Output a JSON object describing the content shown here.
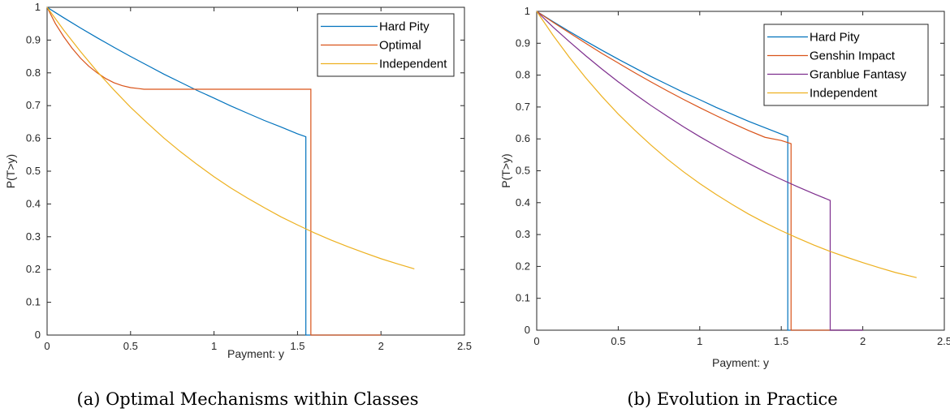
{
  "chart_data": [
    {
      "type": "line",
      "caption": "(a) Optimal Mechanisms within Classes",
      "xlabel": "Payment: y",
      "ylabel": "P(T>y)",
      "xlim": [
        0,
        2.5
      ],
      "ylim": [
        0,
        1
      ],
      "xticks": [
        0,
        0.5,
        1,
        1.5,
        2,
        2.5
      ],
      "yticks": [
        0,
        0.1,
        0.2,
        0.3,
        0.4,
        0.5,
        0.6,
        0.7,
        0.8,
        0.9,
        1
      ],
      "xtick_labels": [
        "0",
        "0.5",
        "1",
        "1.5",
        "2",
        "2.5"
      ],
      "ytick_labels": [
        "0",
        "0.1",
        "0.2",
        "0.3",
        "0.4",
        "0.5",
        "0.6",
        "0.7",
        "0.8",
        "0.9",
        "1"
      ],
      "grid": false,
      "legend_position": "top-right",
      "series": [
        {
          "name": "Hard Pity",
          "color": "#0072BD",
          "x": [
            0,
            0.1,
            0.2,
            0.3,
            0.4,
            0.5,
            0.6,
            0.7,
            0.8,
            0.9,
            1.0,
            1.1,
            1.2,
            1.3,
            1.4,
            1.5,
            1.55,
            1.55,
            2.0
          ],
          "y": [
            1.0,
            0.968,
            0.937,
            0.907,
            0.878,
            0.85,
            0.823,
            0.796,
            0.771,
            0.746,
            0.723,
            0.699,
            0.677,
            0.655,
            0.635,
            0.614,
            0.605,
            0.0,
            0.0
          ]
        },
        {
          "name": "Optimal",
          "color": "#D95319",
          "x": [
            0,
            0.05,
            0.1,
            0.15,
            0.2,
            0.25,
            0.3,
            0.35,
            0.4,
            0.45,
            0.5,
            0.55,
            0.58,
            1.0,
            1.5,
            1.58,
            1.58,
            2.0
          ],
          "y": [
            1.0,
            0.95,
            0.91,
            0.875,
            0.845,
            0.82,
            0.8,
            0.783,
            0.77,
            0.761,
            0.755,
            0.752,
            0.75,
            0.75,
            0.75,
            0.75,
            0.0,
            0.0
          ]
        },
        {
          "name": "Independent",
          "color": "#EDB120",
          "x": [
            0,
            0.1,
            0.2,
            0.3,
            0.4,
            0.5,
            0.6,
            0.7,
            0.8,
            0.9,
            1.0,
            1.1,
            1.2,
            1.3,
            1.4,
            1.5,
            1.6,
            1.7,
            1.8,
            1.9,
            2.0,
            2.1,
            2.2
          ],
          "y": [
            1.0,
            0.93,
            0.865,
            0.804,
            0.748,
            0.695,
            0.647,
            0.601,
            0.559,
            0.52,
            0.483,
            0.449,
            0.418,
            0.389,
            0.361,
            0.336,
            0.312,
            0.29,
            0.27,
            0.251,
            0.233,
            0.217,
            0.202
          ]
        }
      ]
    },
    {
      "type": "line",
      "caption": "(b) Evolution in Practice",
      "xlabel": "Payment: y",
      "ylabel": "P(T>y)",
      "xlim": [
        0,
        2.5
      ],
      "ylim": [
        0,
        1
      ],
      "xticks": [
        0,
        0.5,
        1,
        1.5,
        2,
        2.5
      ],
      "yticks": [
        0,
        0.1,
        0.2,
        0.3,
        0.4,
        0.5,
        0.6,
        0.7,
        0.8,
        0.9,
        1
      ],
      "xtick_labels": [
        "0",
        "0.5",
        "1",
        "1.5",
        "2",
        "2.5"
      ],
      "ytick_labels": [
        "0",
        "0.1",
        "0.2",
        "0.3",
        "0.4",
        "0.5",
        "0.6",
        "0.7",
        "0.8",
        "0.9",
        "1"
      ],
      "grid": false,
      "legend_position": "top-right",
      "series": [
        {
          "name": "Hard Pity",
          "color": "#0072BD",
          "x": [
            0,
            0.1,
            0.2,
            0.3,
            0.4,
            0.5,
            0.6,
            0.7,
            0.8,
            0.9,
            1.0,
            1.1,
            1.2,
            1.3,
            1.4,
            1.54,
            1.54,
            2.0
          ],
          "y": [
            1.0,
            0.968,
            0.937,
            0.907,
            0.878,
            0.85,
            0.823,
            0.796,
            0.771,
            0.746,
            0.723,
            0.699,
            0.677,
            0.655,
            0.635,
            0.607,
            0.0,
            0.0
          ]
        },
        {
          "name": "Genshin Impact",
          "color": "#D95319",
          "x": [
            0,
            0.1,
            0.2,
            0.3,
            0.4,
            0.5,
            0.6,
            0.7,
            0.8,
            0.9,
            1.0,
            1.1,
            1.2,
            1.3,
            1.4,
            1.5,
            1.56,
            1.56,
            2.0
          ],
          "y": [
            1.0,
            0.966,
            0.933,
            0.9,
            0.868,
            0.838,
            0.808,
            0.779,
            0.751,
            0.724,
            0.698,
            0.673,
            0.649,
            0.626,
            0.605,
            0.595,
            0.585,
            0.0,
            0.0
          ]
        },
        {
          "name": "Granblue Fantasy",
          "color": "#7E2F8E",
          "x": [
            0,
            0.1,
            0.2,
            0.3,
            0.4,
            0.5,
            0.6,
            0.7,
            0.8,
            0.9,
            1.0,
            1.1,
            1.2,
            1.3,
            1.4,
            1.5,
            1.6,
            1.7,
            1.8,
            1.8,
            2.0
          ],
          "y": [
            1.0,
            0.951,
            0.905,
            0.861,
            0.819,
            0.779,
            0.741,
            0.705,
            0.671,
            0.638,
            0.607,
            0.578,
            0.55,
            0.523,
            0.497,
            0.473,
            0.45,
            0.428,
            0.407,
            0.0,
            0.0
          ]
        },
        {
          "name": "Independent",
          "color": "#EDB120",
          "x": [
            0,
            0.1,
            0.2,
            0.3,
            0.4,
            0.5,
            0.6,
            0.7,
            0.8,
            0.9,
            1.0,
            1.1,
            1.2,
            1.3,
            1.4,
            1.5,
            1.6,
            1.7,
            1.8,
            1.9,
            2.0,
            2.1,
            2.2,
            2.33
          ],
          "y": [
            1.0,
            0.925,
            0.856,
            0.792,
            0.733,
            0.678,
            0.628,
            0.581,
            0.537,
            0.497,
            0.46,
            0.426,
            0.394,
            0.364,
            0.337,
            0.312,
            0.289,
            0.267,
            0.247,
            0.229,
            0.212,
            0.196,
            0.181,
            0.165
          ]
        }
      ]
    }
  ]
}
